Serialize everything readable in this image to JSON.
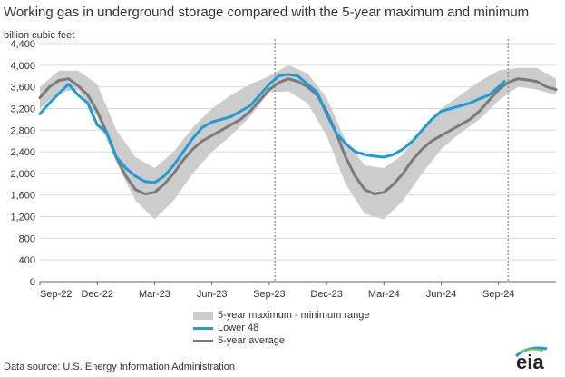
{
  "chart_data": {
    "type": "area",
    "title": "Working gas in underground storage compared with the 5-year maximum and minimum",
    "ylabel": "billion cubic feet",
    "xlabel": "",
    "ylim": [
      0,
      4400
    ],
    "yticks": [
      0,
      400,
      800,
      1200,
      1600,
      2000,
      2400,
      2800,
      3200,
      3600,
      4000,
      4400
    ],
    "ytick_labels": [
      "0",
      "400",
      "800",
      "1,200",
      "1,600",
      "2,000",
      "2,400",
      "2,800",
      "3,200",
      "3,600",
      "4,000",
      "4,400"
    ],
    "xlim_month_index": [
      0,
      27
    ],
    "xtick_labels": [
      {
        "month_index": 0,
        "label": "Sep-22"
      },
      {
        "month_index": 3,
        "label": "Dec-22"
      },
      {
        "month_index": 6,
        "label": "Mar-23"
      },
      {
        "month_index": 9,
        "label": "Jun-23"
      },
      {
        "month_index": 12,
        "label": "Sep-23"
      },
      {
        "month_index": 15,
        "label": "Dec-23"
      },
      {
        "month_index": 18,
        "label": "Mar-24"
      },
      {
        "month_index": 21,
        "label": "Jun-24"
      },
      {
        "month_index": 24,
        "label": "Sep-24"
      }
    ],
    "vertical_markers_month_index": [
      12.3,
      24.5
    ],
    "grid": "horizontal",
    "legend_position": "bottom",
    "series": [
      {
        "name": "5-year maximum - minimum range",
        "kind": "band",
        "color": "#cccccc",
        "x": [
          0,
          1,
          2,
          3,
          4,
          5,
          6,
          7,
          8,
          9,
          10,
          11,
          12,
          13,
          14,
          15,
          16,
          17,
          18,
          19,
          20,
          21,
          22,
          23,
          24,
          25,
          26,
          27
        ],
        "low": [
          3200,
          3500,
          3550,
          3050,
          2200,
          1500,
          1150,
          1500,
          2000,
          2400,
          2700,
          3050,
          3500,
          3520,
          3300,
          2700,
          1800,
          1250,
          1150,
          1500,
          2000,
          2450,
          2750,
          3000,
          3350,
          3600,
          3550,
          3450
        ],
        "high": [
          3600,
          3900,
          3900,
          3650,
          2800,
          2300,
          2100,
          2400,
          2850,
          3200,
          3450,
          3650,
          3800,
          4000,
          3850,
          3400,
          2600,
          2150,
          2100,
          2350,
          2850,
          3200,
          3450,
          3700,
          3900,
          3950,
          3950,
          3750
        ]
      },
      {
        "name": "Lower 48",
        "kind": "line",
        "color": "#1f9bd7",
        "x": [
          0,
          0.5,
          1,
          1.5,
          2,
          2.5,
          3,
          3.5,
          4,
          4.5,
          5,
          5.5,
          6,
          6.5,
          7,
          7.5,
          8,
          8.5,
          9,
          9.5,
          10,
          10.5,
          11,
          11.5,
          12,
          12.5,
          13,
          13.5,
          14,
          14.5,
          15,
          15.5,
          16,
          16.5,
          17,
          17.5,
          18,
          18.5,
          19,
          19.5,
          20,
          20.5,
          21,
          21.5,
          22,
          22.5,
          23,
          23.5,
          24,
          24.3
        ],
        "values": [
          3100,
          3300,
          3480,
          3650,
          3450,
          3300,
          2900,
          2750,
          2300,
          2100,
          1950,
          1850,
          1830,
          1950,
          2150,
          2400,
          2650,
          2850,
          2950,
          3000,
          3050,
          3150,
          3250,
          3450,
          3650,
          3800,
          3830,
          3800,
          3650,
          3500,
          3100,
          2750,
          2550,
          2400,
          2350,
          2320,
          2300,
          2350,
          2450,
          2600,
          2800,
          3000,
          3150,
          3200,
          3250,
          3300,
          3380,
          3450,
          3600,
          3700
        ]
      },
      {
        "name": "5-year average",
        "kind": "line",
        "color": "#7a7a7a",
        "x": [
          0,
          0.5,
          1,
          1.5,
          2,
          2.5,
          3,
          3.5,
          4,
          4.5,
          5,
          5.5,
          6,
          6.5,
          7,
          7.5,
          8,
          8.5,
          9,
          9.5,
          10,
          10.5,
          11,
          11.5,
          12,
          12.5,
          13,
          13.5,
          14,
          14.5,
          15,
          15.5,
          16,
          16.5,
          17,
          17.5,
          18,
          18.5,
          19,
          19.5,
          20,
          20.5,
          21,
          21.5,
          22,
          22.5,
          23,
          23.5,
          24,
          24.5,
          25,
          25.5,
          26,
          26.5,
          27
        ],
        "values": [
          3400,
          3600,
          3720,
          3750,
          3620,
          3450,
          3150,
          2750,
          2300,
          1950,
          1700,
          1620,
          1650,
          1800,
          2000,
          2250,
          2450,
          2600,
          2700,
          2800,
          2900,
          3000,
          3150,
          3350,
          3550,
          3680,
          3750,
          3700,
          3600,
          3450,
          3150,
          2750,
          2300,
          1950,
          1700,
          1620,
          1650,
          1800,
          2000,
          2250,
          2450,
          2600,
          2700,
          2800,
          2900,
          3000,
          3150,
          3350,
          3550,
          3680,
          3750,
          3730,
          3700,
          3600,
          3550
        ]
      }
    ]
  },
  "source": "Data source:  U.S. Energy Information Administration",
  "logo_text": "eia",
  "colors": {
    "grid": "#d9d9d9",
    "marker": "#999999",
    "axis": "#666666"
  }
}
